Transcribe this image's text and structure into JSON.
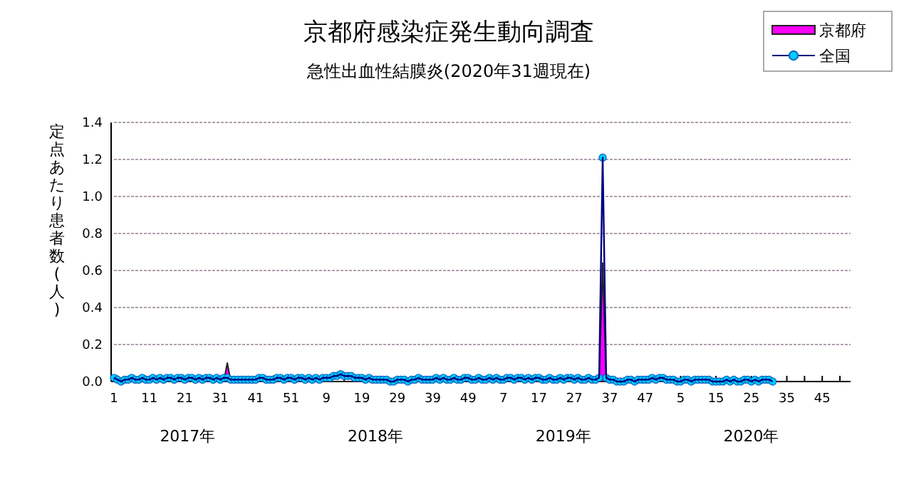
{
  "chart_data": {
    "type": "line",
    "title": "京都府感染症発生動向調査",
    "subtitle": "急性出血性結膜炎(2020年31週現在)",
    "ylabel": "定点あたり患者数(人)",
    "categories": [
      "1",
      null,
      null,
      null,
      null,
      null,
      null,
      null,
      null,
      null,
      "11",
      null,
      null,
      null,
      null,
      null,
      null,
      null,
      null,
      null,
      "21",
      null,
      null,
      null,
      null,
      null,
      null,
      null,
      null,
      null,
      "31",
      null,
      null,
      null,
      null,
      null,
      null,
      null,
      null,
      null,
      "41",
      null,
      null,
      null,
      null,
      null,
      null,
      null,
      null,
      null,
      "51",
      null,
      null,
      null,
      null,
      null,
      null,
      null,
      null,
      null,
      "9",
      null,
      null,
      null,
      null,
      null,
      null,
      null,
      null,
      null,
      "19",
      null,
      null,
      null,
      null,
      null,
      null,
      null,
      null,
      null,
      "29",
      null,
      null,
      null,
      null,
      null,
      null,
      null,
      null,
      null,
      "39",
      null,
      null,
      null,
      null,
      null,
      null,
      null,
      null,
      null,
      "49",
      null,
      null,
      null,
      null,
      null,
      null,
      null,
      null,
      null,
      "7",
      null,
      null,
      null,
      null,
      null,
      null,
      null,
      null,
      null,
      "17",
      null,
      null,
      null,
      null,
      null,
      null,
      null,
      null,
      null,
      "27",
      null,
      null,
      null,
      null,
      null,
      null,
      null,
      null,
      null,
      "37",
      null,
      null,
      null,
      null,
      null,
      null,
      null,
      null,
      null,
      "47",
      null,
      null,
      null,
      null,
      null,
      null,
      null,
      null,
      null,
      "5",
      null,
      null,
      null,
      null,
      null,
      null,
      null,
      null,
      null,
      "15",
      null,
      null,
      null,
      null,
      null,
      null,
      null,
      null,
      null,
      "25",
      null,
      null,
      null,
      null,
      null,
      null,
      null,
      null,
      null,
      "35",
      null,
      null,
      null,
      null,
      null,
      null,
      null,
      null,
      null,
      "45",
      null,
      null,
      null,
      null,
      null,
      null,
      null,
      null
    ],
    "ylim": [
      0,
      1.4
    ],
    "yticks": [
      {
        "value": 0,
        "label": "0.0"
      },
      {
        "value": 0.2,
        "label": "0.2"
      },
      {
        "value": 0.4,
        "label": "0.4"
      },
      {
        "value": 0.6,
        "label": "0.6"
      },
      {
        "value": 0.8,
        "label": "0.8"
      },
      {
        "value": 1,
        "label": "1.0"
      },
      {
        "value": 1.2,
        "label": "1.2"
      },
      {
        "value": 1.4,
        "label": "1.4"
      }
    ],
    "grid": "y",
    "legend": "top right",
    "annotations": [
      "2017年",
      "2018年",
      "2019年",
      "2020年"
    ],
    "series": [
      {
        "name": "京都府",
        "type": "area",
        "color": "#ff00ff",
        "values": [
          0,
          0.03,
          0,
          0,
          0,
          0,
          0,
          0,
          0,
          0,
          0,
          0,
          0,
          0,
          0,
          0,
          0,
          0,
          0,
          0,
          0,
          0,
          0,
          0,
          0,
          0.03,
          0,
          0,
          0,
          0.03,
          0,
          0,
          0.1,
          0,
          0,
          0,
          0,
          0,
          0,
          0,
          0,
          0,
          0,
          0,
          0,
          0.03,
          0,
          0,
          0,
          0,
          0,
          0,
          0,
          0.03,
          0,
          0,
          0,
          0,
          0,
          0.03,
          0,
          0,
          0,
          0,
          0,
          0,
          0,
          0,
          0,
          0,
          0,
          0.02,
          0,
          0,
          0,
          0,
          0,
          0,
          0,
          0,
          0,
          0,
          0,
          0,
          0,
          0,
          0,
          0,
          0,
          0,
          0,
          0,
          0,
          0,
          0,
          0,
          0,
          0,
          0,
          0,
          0,
          0,
          0,
          0,
          0,
          0,
          0,
          0,
          0,
          0,
          0,
          0,
          0,
          0,
          0,
          0,
          0,
          0,
          0,
          0,
          0,
          0,
          0,
          0,
          0,
          0,
          0,
          0,
          0,
          0,
          0,
          0,
          0,
          0,
          0,
          0,
          0,
          0,
          0.64,
          0,
          0,
          0,
          0,
          0,
          0,
          0,
          0,
          0,
          0,
          0,
          0,
          0,
          0,
          0,
          0,
          0.03,
          0,
          0,
          0,
          0,
          0,
          0,
          0,
          0,
          0,
          0,
          0,
          0,
          0,
          0,
          0,
          0,
          0,
          0,
          0,
          0,
          0,
          0,
          0,
          0,
          0,
          0,
          0,
          0,
          0,
          0,
          0,
          null,
          null,
          null,
          null,
          null,
          null,
          null,
          null,
          null,
          null,
          null,
          null,
          null,
          null,
          null,
          null,
          null,
          null,
          null,
          null,
          null,
          null
        ]
      },
      {
        "name": "全国",
        "marker": "circle",
        "color": "#00ccff",
        "values": [
          0.02,
          0.01,
          0.0,
          0.01,
          0.01,
          0.02,
          0.01,
          0.01,
          0.02,
          0.01,
          0.01,
          0.02,
          0.01,
          0.02,
          0.01,
          0.02,
          0.02,
          0.01,
          0.02,
          0.02,
          0.01,
          0.02,
          0.02,
          0.01,
          0.02,
          0.01,
          0.02,
          0.02,
          0.01,
          0.02,
          0.01,
          0.02,
          0.02,
          0.01,
          0.01,
          0.01,
          0.01,
          0.01,
          0.01,
          0.01,
          0.01,
          0.02,
          0.02,
          0.01,
          0.01,
          0.01,
          0.02,
          0.02,
          0.01,
          0.02,
          0.02,
          0.01,
          0.02,
          0.02,
          0.01,
          0.02,
          0.01,
          0.02,
          0.01,
          0.02,
          0.02,
          0.02,
          0.03,
          0.03,
          0.04,
          0.03,
          0.03,
          0.03,
          0.02,
          0.02,
          0.02,
          0.01,
          0.02,
          0.01,
          0.01,
          0.01,
          0.01,
          0.01,
          0.0,
          0.0,
          0.01,
          0.01,
          0.01,
          0.0,
          0.01,
          0.01,
          0.02,
          0.01,
          0.01,
          0.01,
          0.01,
          0.02,
          0.01,
          0.02,
          0.01,
          0.01,
          0.02,
          0.01,
          0.01,
          0.02,
          0.02,
          0.01,
          0.01,
          0.02,
          0.01,
          0.01,
          0.02,
          0.01,
          0.02,
          0.01,
          0.01,
          0.02,
          0.02,
          0.01,
          0.02,
          0.02,
          0.01,
          0.02,
          0.01,
          0.02,
          0.02,
          0.01,
          0.01,
          0.02,
          0.01,
          0.01,
          0.02,
          0.01,
          0.02,
          0.02,
          0.01,
          0.02,
          0.01,
          0.01,
          0.02,
          0.01,
          0.01,
          0.02,
          1.21,
          0.02,
          0.01,
          0.01,
          0.0,
          0.0,
          0.0,
          0.01,
          0.01,
          0.0,
          0.01,
          0.01,
          0.01,
          0.01,
          0.02,
          0.01,
          0.02,
          0.02,
          0.01,
          0.01,
          0.01,
          0.0,
          0.0,
          0.01,
          0.01,
          0.0,
          0.01,
          0.01,
          0.01,
          0.01,
          0.01,
          0.0,
          0.0,
          0.0,
          0.0,
          0.01,
          0.0,
          0.01,
          0.0,
          0.0,
          0.01,
          0.01,
          0.0,
          0.01,
          0.0,
          0.01,
          0.01,
          0.01,
          0.0,
          null,
          null,
          null,
          null,
          null,
          null,
          null,
          null,
          null,
          null,
          null,
          null,
          null,
          null,
          null,
          null,
          null,
          null,
          null,
          null,
          null,
          null
        ]
      }
    ]
  }
}
